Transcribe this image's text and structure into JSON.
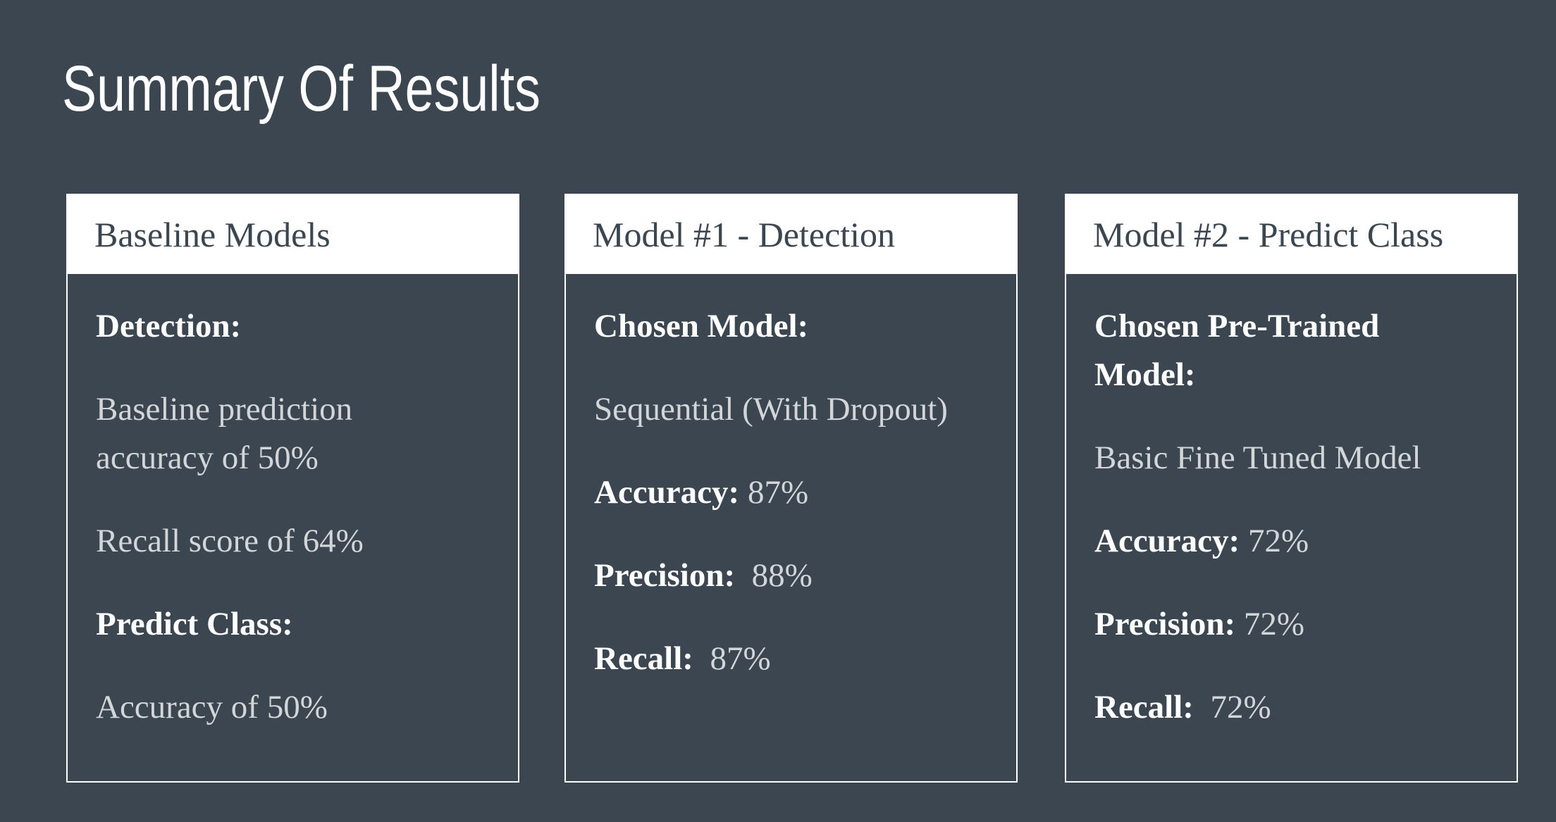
{
  "title": "Summary Of Results",
  "colors": {
    "background": "#3b4650",
    "header_background": "#ffffff",
    "heading_text": "#ffffff",
    "body_text": "#d2d6d9"
  },
  "cards": [
    {
      "title": "Baseline Models",
      "detection_heading": "Detection:",
      "detection_line1": "Baseline prediction accuracy of 50%",
      "detection_line2": "Recall score of 64%",
      "predict_heading": "Predict Class:",
      "predict_line": "Accuracy of 50%"
    },
    {
      "title": "Model #1 - Detection",
      "chosen_label": "Chosen Model:",
      "chosen_value": "Sequential (With Dropout)",
      "accuracy_label": "Accuracy:",
      "accuracy_value": " 87%",
      "precision_label": "Precision:",
      "precision_value": "  88%",
      "recall_label": "Recall:",
      "recall_value": "  87%"
    },
    {
      "title": "Model #2 - Predict Class",
      "chosen_label": "Chosen Pre-Trained Model:",
      "chosen_value": "Basic Fine Tuned Model",
      "accuracy_label": "Accuracy:",
      "accuracy_value": " 72%",
      "precision_label": "Precision:",
      "precision_value": " 72%",
      "recall_label": "Recall:",
      "recall_value": "  72%"
    }
  ]
}
